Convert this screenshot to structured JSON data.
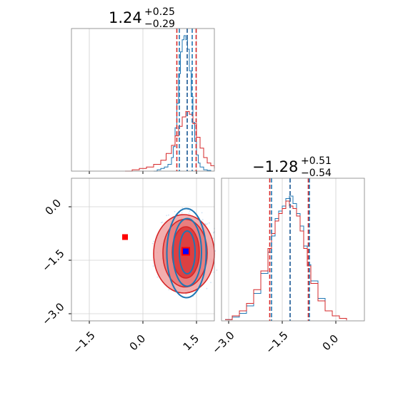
{
  "colors": {
    "series_a": "#d62728",
    "series_b": "#1f77b4",
    "marker_a": "#ff0000",
    "marker_b": "#0000ff",
    "fill_inner": "#d62728",
    "fill_outer": "#f0a0a0",
    "grid": "#d0d0d0",
    "frame": "#808080"
  },
  "chart_data": [
    {
      "panel": "marginal-x",
      "type": "line",
      "title_value": "1.24",
      "title_plus": "+0.25",
      "title_minus": "−0.29",
      "xlim": [
        -2.0,
        2.0
      ],
      "grid": true,
      "series": [
        {
          "color_key": "series_b",
          "x": [
            0.3,
            0.4,
            0.5,
            0.6,
            0.7,
            0.8,
            0.85,
            0.9,
            0.95,
            1.0,
            1.05,
            1.1,
            1.15,
            1.2,
            1.25,
            1.3,
            1.35,
            1.4,
            1.45,
            1.5,
            1.55,
            1.6,
            1.7,
            1.8,
            1.9
          ],
          "y": [
            0,
            0.01,
            0.02,
            0.03,
            0.05,
            0.1,
            0.18,
            0.32,
            0.5,
            0.72,
            0.88,
            0.97,
            1.0,
            0.97,
            0.9,
            0.74,
            0.55,
            0.36,
            0.22,
            0.12,
            0.06,
            0.03,
            0.01,
            0.005,
            0
          ]
        },
        {
          "color_key": "series_a",
          "x": [
            -0.5,
            -0.3,
            -0.1,
            0.1,
            0.3,
            0.5,
            0.65,
            0.8,
            0.9,
            1.0,
            1.1,
            1.2,
            1.3,
            1.4,
            1.5,
            1.6,
            1.7,
            1.8,
            1.9,
            2.0
          ],
          "y": [
            0.0,
            0.01,
            0.02,
            0.03,
            0.05,
            0.08,
            0.13,
            0.19,
            0.26,
            0.33,
            0.4,
            0.44,
            0.42,
            0.35,
            0.25,
            0.17,
            0.1,
            0.06,
            0.04,
            0.02
          ]
        }
      ],
      "quantile_lines": [
        {
          "color_key": "series_a",
          "values": [
            0.95,
            1.24,
            1.49
          ]
        },
        {
          "color_key": "series_b",
          "values": [
            1.02,
            1.24,
            1.38
          ]
        }
      ]
    },
    {
      "panel": "marginal-y",
      "type": "line",
      "title_value": "−1.28",
      "title_plus": "+0.51",
      "title_minus": "−0.54",
      "xlim": [
        -3.2,
        0.8
      ],
      "xticks": [
        -3.0,
        -1.5,
        0.0
      ],
      "xtick_labels": [
        "−3.0",
        "−1.5",
        "0.0"
      ],
      "grid": true,
      "series": [
        {
          "color_key": "series_b",
          "x": [
            -3.1,
            -2.9,
            -2.7,
            -2.5,
            -2.3,
            -2.1,
            -1.9,
            -1.8,
            -1.7,
            -1.6,
            -1.5,
            -1.4,
            -1.3,
            -1.2,
            -1.1,
            -1.0,
            -0.9,
            -0.8,
            -0.7,
            -0.5,
            -0.3,
            -0.1,
            0.1,
            0.3
          ],
          "y": [
            0.01,
            0.03,
            0.06,
            0.12,
            0.22,
            0.38,
            0.55,
            0.68,
            0.82,
            0.88,
            0.92,
            0.98,
            1.0,
            0.94,
            0.86,
            0.76,
            0.6,
            0.45,
            0.32,
            0.18,
            0.08,
            0.04,
            0.02,
            0.005
          ]
        },
        {
          "color_key": "series_a",
          "x": [
            -3.1,
            -2.9,
            -2.7,
            -2.5,
            -2.3,
            -2.1,
            -1.9,
            -1.8,
            -1.7,
            -1.6,
            -1.5,
            -1.4,
            -1.3,
            -1.2,
            -1.1,
            -1.0,
            -0.9,
            -0.8,
            -0.7,
            -0.5,
            -0.3,
            -0.1,
            0.1,
            0.3
          ],
          "y": [
            0.01,
            0.04,
            0.08,
            0.14,
            0.25,
            0.4,
            0.58,
            0.7,
            0.8,
            0.86,
            0.9,
            0.96,
            0.92,
            0.9,
            0.84,
            0.72,
            0.58,
            0.44,
            0.3,
            0.16,
            0.08,
            0.04,
            0.02,
            0.005
          ]
        }
      ],
      "quantile_lines": [
        {
          "color_key": "series_a",
          "values": [
            -1.85,
            -1.28,
            -0.77
          ]
        },
        {
          "color_key": "series_b",
          "values": [
            -1.8,
            -1.28,
            -0.74
          ]
        }
      ]
    },
    {
      "panel": "joint",
      "type": "scatter",
      "xlim": [
        -2.0,
        2.0
      ],
      "ylim": [
        -3.2,
        0.8
      ],
      "xticks": [
        -1.5,
        0.0,
        1.5
      ],
      "xtick_labels": [
        "−1.5",
        "0.0",
        "1.5"
      ],
      "yticks": [
        0.0,
        -1.5,
        -3.0
      ],
      "ytick_labels": [
        "0.0",
        "−1.5",
        "−3.0"
      ],
      "grid": true,
      "contours_a": [
        {
          "level": "outer",
          "cx": 1.15,
          "cy": -1.32,
          "rx": 0.85,
          "ry": 1.1
        },
        {
          "level": "mid",
          "cx": 1.18,
          "cy": -1.3,
          "rx": 0.62,
          "ry": 0.95
        },
        {
          "level": "inner",
          "cx": 1.2,
          "cy": -1.28,
          "rx": 0.38,
          "ry": 0.72
        }
      ],
      "contours_b": [
        {
          "cx": 1.22,
          "cy": -1.3,
          "rx": 0.55,
          "ry": 1.25
        },
        {
          "cx": 1.24,
          "cy": -1.28,
          "rx": 0.4,
          "ry": 0.95
        },
        {
          "cx": 1.24,
          "cy": -1.28,
          "rx": 0.22,
          "ry": 0.6
        }
      ],
      "markers": [
        {
          "color_key": "marker_a",
          "x": -0.5,
          "y": -0.85
        },
        {
          "color_key": "marker_a",
          "x": 1.2,
          "y": -1.25
        },
        {
          "color_key": "marker_b",
          "x": 1.2,
          "y": -1.25
        }
      ]
    }
  ]
}
